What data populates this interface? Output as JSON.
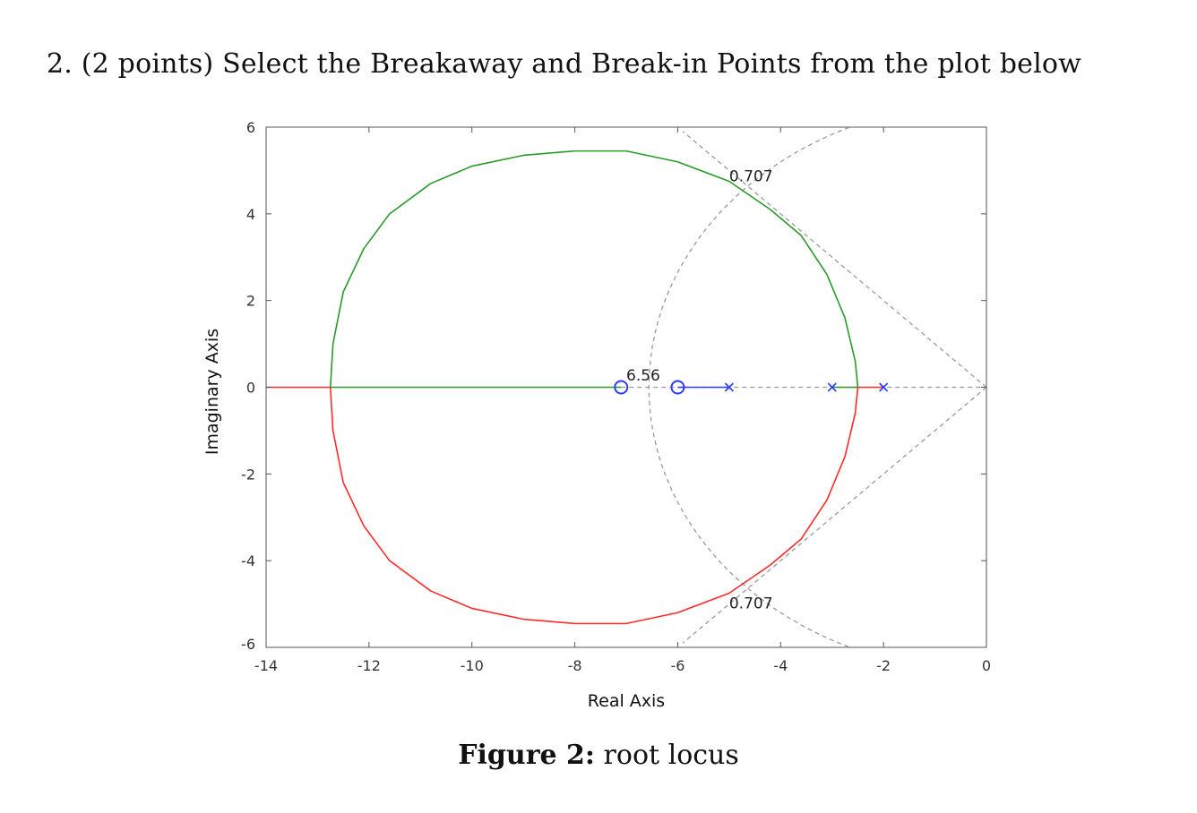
{
  "question": "2. (2 points) Select the Breakaway and Break-in Points from the plot below",
  "caption": {
    "number": "Figure 2:",
    "text": "root locus"
  },
  "chart_data": {
    "type": "line",
    "xlabel": "Real Axis",
    "ylabel": "Imaginary Axis",
    "xlim": [
      -14,
      0
    ],
    "ylim": [
      -6,
      6
    ],
    "x_ticks": [
      -14,
      -12,
      -10,
      -8,
      -6,
      -4,
      -2,
      0
    ],
    "y_ticks": [
      -6,
      -4,
      -2,
      0,
      2,
      4,
      6
    ],
    "x_tick_labels": [
      "-14",
      "-12",
      "-10",
      "-8",
      "-6",
      "-4",
      "-2",
      "0"
    ],
    "y_tick_labels": [
      "-6",
      "-4",
      "-2",
      "0",
      "2",
      "4",
      "6"
    ],
    "grid": false,
    "colors": {
      "green": "#2a9a2a",
      "red": "#ff2a2a",
      "blue": "#2a3cff",
      "grid_gray": "#9a9a9a"
    },
    "poles": [
      [
        -5,
        0
      ],
      [
        -3,
        0
      ],
      [
        -2,
        0
      ]
    ],
    "zeros": [
      [
        -7.1,
        0
      ],
      [
        -6,
        0
      ]
    ],
    "series": [
      {
        "color": "green",
        "points": [
          [
            -12.75,
            0
          ],
          [
            -7.1,
            0
          ]
        ]
      },
      {
        "color": "green",
        "points": [
          [
            -2.5,
            0
          ],
          [
            -3,
            0
          ]
        ]
      },
      {
        "color": "red",
        "points": [
          [
            -14,
            0
          ],
          [
            -12.75,
            0
          ]
        ]
      },
      {
        "color": "red",
        "points": [
          [
            -2.5,
            0
          ],
          [
            -2,
            0
          ]
        ]
      },
      {
        "color": "blue",
        "points": [
          [
            -6,
            0
          ],
          [
            -5,
            0
          ]
        ]
      },
      {
        "color": "green",
        "points": [
          [
            -12.75,
            0
          ],
          [
            -12.7,
            1.0
          ],
          [
            -12.5,
            2.2
          ],
          [
            -12.1,
            3.2
          ],
          [
            -11.6,
            4.0
          ],
          [
            -10.8,
            4.7
          ],
          [
            -10.0,
            5.1
          ],
          [
            -9.0,
            5.35
          ],
          [
            -8.0,
            5.45
          ],
          [
            -7.0,
            5.45
          ],
          [
            -6.0,
            5.2
          ],
          [
            -5.0,
            4.75
          ],
          [
            -4.2,
            4.1
          ],
          [
            -3.6,
            3.5
          ],
          [
            -3.1,
            2.6
          ],
          [
            -2.75,
            1.6
          ],
          [
            -2.55,
            0.6
          ],
          [
            -2.5,
            0
          ]
        ]
      },
      {
        "color": "red",
        "points": [
          [
            -12.75,
            0
          ],
          [
            -12.7,
            -1.0
          ],
          [
            -12.5,
            -2.2
          ],
          [
            -12.1,
            -3.2
          ],
          [
            -11.6,
            -4.0
          ],
          [
            -10.8,
            -4.7
          ],
          [
            -10.0,
            -5.1
          ],
          [
            -9.0,
            -5.35
          ],
          [
            -8.0,
            -5.45
          ],
          [
            -7.0,
            -5.45
          ],
          [
            -6.0,
            -5.2
          ],
          [
            -5.0,
            -4.75
          ],
          [
            -4.2,
            -4.1
          ],
          [
            -3.6,
            -3.5
          ],
          [
            -3.1,
            -2.6
          ],
          [
            -2.75,
            -1.6
          ],
          [
            -2.55,
            -0.6
          ],
          [
            -2.5,
            0
          ]
        ]
      }
    ],
    "grid_lines": {
      "damping_rays": [
        [
          [
            0,
            0
          ],
          [
            -5.9,
            5.9
          ]
        ],
        [
          [
            0,
            0
          ],
          [
            -5.9,
            -5.9
          ]
        ]
      ],
      "frequency_arc_radius": 6.56,
      "real_axis_dash": [
        [
          -7.1,
          0
        ],
        [
          0,
          0
        ]
      ]
    },
    "annotations": [
      {
        "text": "6.56",
        "x": -7.0,
        "y": 0.15
      },
      {
        "text": "0.707",
        "x": -5.0,
        "y": 4.75
      },
      {
        "text": "0.707",
        "x": -5.0,
        "y": -5.1
      }
    ]
  }
}
